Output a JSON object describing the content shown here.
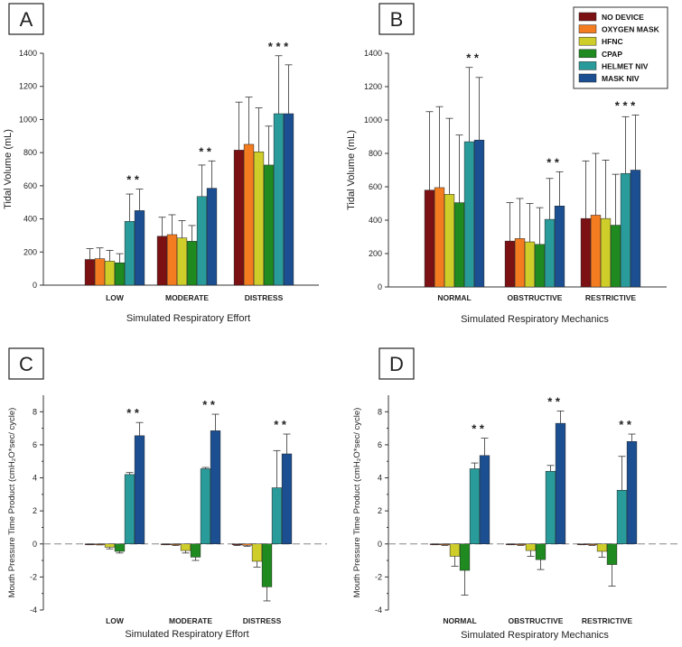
{
  "legend": [
    {
      "name": "NO DEVICE",
      "color": "#7b1113"
    },
    {
      "name": "OXYGEN MASK",
      "color": "#f47c20"
    },
    {
      "name": "HFNC",
      "color": "#cfcd2a"
    },
    {
      "name": "CPAP",
      "color": "#1f8a20"
    },
    {
      "name": "HELMET NIV",
      "color": "#2a9b9b"
    },
    {
      "name": "MASK NIV",
      "color": "#1b4f91"
    }
  ],
  "chart_data": [
    {
      "panel": "A",
      "type": "bar",
      "title": "",
      "xlabel": "Simulated Respiratory Effort",
      "ylabel": "Tidal Volume (mL)",
      "ylim": [
        0,
        1400
      ],
      "yticks": [
        "0",
        "200",
        "400",
        "600",
        "800",
        "1000",
        "1200",
        "1400"
      ],
      "categories": [
        "LOW",
        "MODERATE",
        "DISTRESS"
      ],
      "series": [
        {
          "name": "NO DEVICE",
          "values": [
            155,
            295,
            815
          ],
          "errors": [
            65,
            115,
            290
          ]
        },
        {
          "name": "OXYGEN MASK",
          "values": [
            160,
            305,
            850
          ],
          "errors": [
            65,
            120,
            285
          ]
        },
        {
          "name": "HFNC",
          "values": [
            145,
            285,
            805
          ],
          "errors": [
            65,
            105,
            265
          ]
        },
        {
          "name": "CPAP",
          "values": [
            135,
            265,
            725
          ],
          "errors": [
            55,
            95,
            235
          ]
        },
        {
          "name": "HELMET NIV",
          "values": [
            385,
            535,
            1035
          ],
          "errors": [
            165,
            190,
            350
          ]
        },
        {
          "name": "MASK NIV",
          "values": [
            450,
            585,
            1035
          ],
          "errors": [
            130,
            165,
            295
          ]
        }
      ],
      "annotations": [
        "* *",
        "* *",
        "* * *"
      ]
    },
    {
      "panel": "B",
      "type": "bar",
      "title": "",
      "xlabel": "Simulated Respiratory Mechanics",
      "ylabel": "Tidal Volume (mL)",
      "ylim": [
        0,
        1400
      ],
      "yticks": [
        "0",
        "200",
        "400",
        "600",
        "800",
        "1000",
        "1200",
        "1400"
      ],
      "categories": [
        "NORMAL",
        "OBSTRUCTIVE",
        "RESTRICTIVE"
      ],
      "series": [
        {
          "name": "NO DEVICE",
          "values": [
            580,
            275,
            410
          ],
          "errors": [
            470,
            230,
            345
          ]
        },
        {
          "name": "OXYGEN MASK",
          "values": [
            595,
            290,
            430
          ],
          "errors": [
            485,
            240,
            370
          ]
        },
        {
          "name": "HFNC",
          "values": [
            555,
            270,
            410
          ],
          "errors": [
            455,
            230,
            350
          ]
        },
        {
          "name": "CPAP",
          "values": [
            505,
            255,
            370
          ],
          "errors": [
            405,
            220,
            305
          ]
        },
        {
          "name": "HELMET NIV",
          "values": [
            870,
            405,
            680
          ],
          "errors": [
            445,
            245,
            340
          ]
        },
        {
          "name": "MASK NIV",
          "values": [
            880,
            485,
            700
          ],
          "errors": [
            375,
            205,
            330
          ]
        }
      ],
      "annotations": [
        "* *",
        "* *",
        "* * *"
      ]
    },
    {
      "panel": "C",
      "type": "bar",
      "title": "",
      "xlabel": "Simulated Respiratory Effort",
      "ylabel": "Mouth Pressure Time Product (cmH₂O*sec/ cycle)",
      "ylim": [
        -4,
        9
      ],
      "yticks": [
        "-4",
        "-2",
        "0",
        "2",
        "4",
        "6",
        "8"
      ],
      "categories": [
        "LOW",
        "MODERATE",
        "DISTRESS"
      ],
      "series": [
        {
          "name": "NO DEVICE",
          "values": [
            -0.02,
            -0.02,
            -0.05
          ],
          "errors": [
            0.03,
            0.03,
            0.05
          ]
        },
        {
          "name": "OXYGEN MASK",
          "values": [
            -0.03,
            -0.05,
            -0.08
          ],
          "errors": [
            0.03,
            0.05,
            0.06
          ]
        },
        {
          "name": "HFNC",
          "values": [
            -0.2,
            -0.4,
            -1.05
          ],
          "errors": [
            0.1,
            0.15,
            0.35
          ]
        },
        {
          "name": "CPAP",
          "values": [
            -0.45,
            -0.8,
            -2.6
          ],
          "errors": [
            0.1,
            0.2,
            0.85
          ]
        },
        {
          "name": "HELMET NIV",
          "values": [
            4.2,
            4.55,
            3.4
          ],
          "errors": [
            0.12,
            0.08,
            2.25
          ]
        },
        {
          "name": "MASK NIV",
          "values": [
            6.55,
            6.85,
            5.45
          ],
          "errors": [
            0.8,
            1.0,
            1.2
          ]
        }
      ],
      "annotations": [
        "* *",
        "* *",
        "* *"
      ]
    },
    {
      "panel": "D",
      "type": "bar",
      "title": "",
      "xlabel": "Simulated Respiratory Mechanics",
      "ylabel": "Mouth Pressure Time Product (cmH₂O*sec/ cycle)",
      "ylim": [
        -4,
        9
      ],
      "yticks": [
        "-4",
        "-2",
        "0",
        "2",
        "4",
        "6",
        "8"
      ],
      "categories": [
        "NORMAL",
        "OBSTRUCTIVE",
        "RESTRICTIVE"
      ],
      "series": [
        {
          "name": "NO DEVICE",
          "values": [
            -0.02,
            -0.02,
            -0.02
          ],
          "errors": [
            0.03,
            0.03,
            0.03
          ]
        },
        {
          "name": "OXYGEN MASK",
          "values": [
            -0.05,
            -0.05,
            -0.05
          ],
          "errors": [
            0.04,
            0.04,
            0.04
          ]
        },
        {
          "name": "HFNC",
          "values": [
            -0.75,
            -0.4,
            -0.45
          ],
          "errors": [
            0.6,
            0.35,
            0.35
          ]
        },
        {
          "name": "CPAP",
          "values": [
            -1.6,
            -0.95,
            -1.25
          ],
          "errors": [
            1.5,
            0.6,
            1.3
          ]
        },
        {
          "name": "HELMET NIV",
          "values": [
            4.55,
            4.4,
            3.25
          ],
          "errors": [
            0.35,
            0.35,
            2.05
          ]
        },
        {
          "name": "MASK NIV",
          "values": [
            5.35,
            7.3,
            6.2
          ],
          "errors": [
            1.05,
            0.75,
            0.45
          ]
        }
      ],
      "annotations": [
        "* *",
        "* *",
        "* *"
      ]
    }
  ]
}
